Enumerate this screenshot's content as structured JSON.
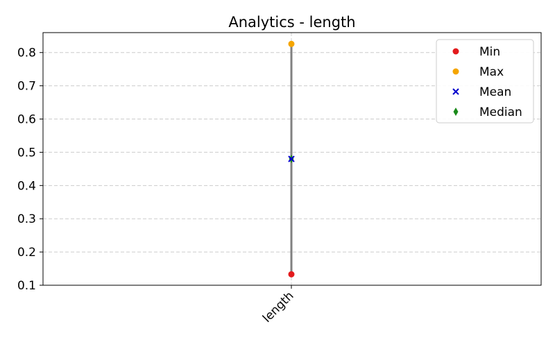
{
  "chart_data": {
    "type": "scatter",
    "title": "Analytics - length",
    "xlabel": "",
    "ylabel": "",
    "categories": [
      "length"
    ],
    "ylim": [
      0.1,
      0.86
    ],
    "yticks": [
      "0.1",
      "0.2",
      "0.3",
      "0.4",
      "0.5",
      "0.6",
      "0.7",
      "0.8"
    ],
    "grid": "horizontal dashed",
    "legend_position": "top-right",
    "range_line": {
      "from": 0.133,
      "to": 0.826,
      "color": "#808080"
    },
    "series": [
      {
        "name": "Min",
        "marker": "circle",
        "color": "#e31a1c",
        "values": [
          0.133
        ]
      },
      {
        "name": "Max",
        "marker": "circle",
        "color": "#f5a500",
        "values": [
          0.826
        ]
      },
      {
        "name": "Mean",
        "marker": "x",
        "color": "#0000cc",
        "values": [
          0.48
        ]
      },
      {
        "name": "Median",
        "marker": "diamond",
        "color": "#1a8a1a",
        "values": [
          0.48
        ]
      }
    ]
  }
}
